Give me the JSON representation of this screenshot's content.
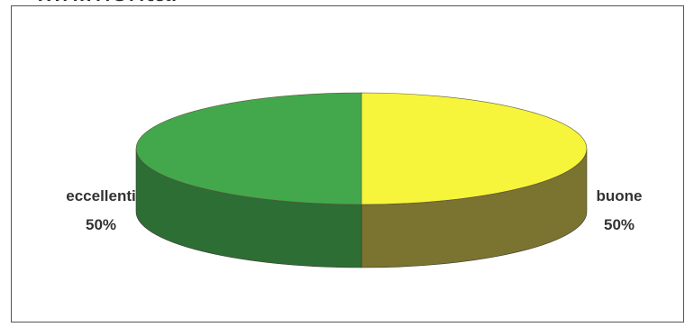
{
  "title": "...nimental",
  "chart_data": {
    "type": "pie",
    "style": "3d-tilted",
    "slices": [
      {
        "label": "buone",
        "value": 50,
        "value_label": "50%",
        "color": "#f7f43c"
      },
      {
        "label": "eccellenti",
        "value": 50,
        "value_label": "50%",
        "color": "#43a84c"
      }
    ],
    "side_colors": {
      "buone": "#7b7330",
      "eccellenti": "#2d6e35"
    },
    "legend": "none"
  }
}
